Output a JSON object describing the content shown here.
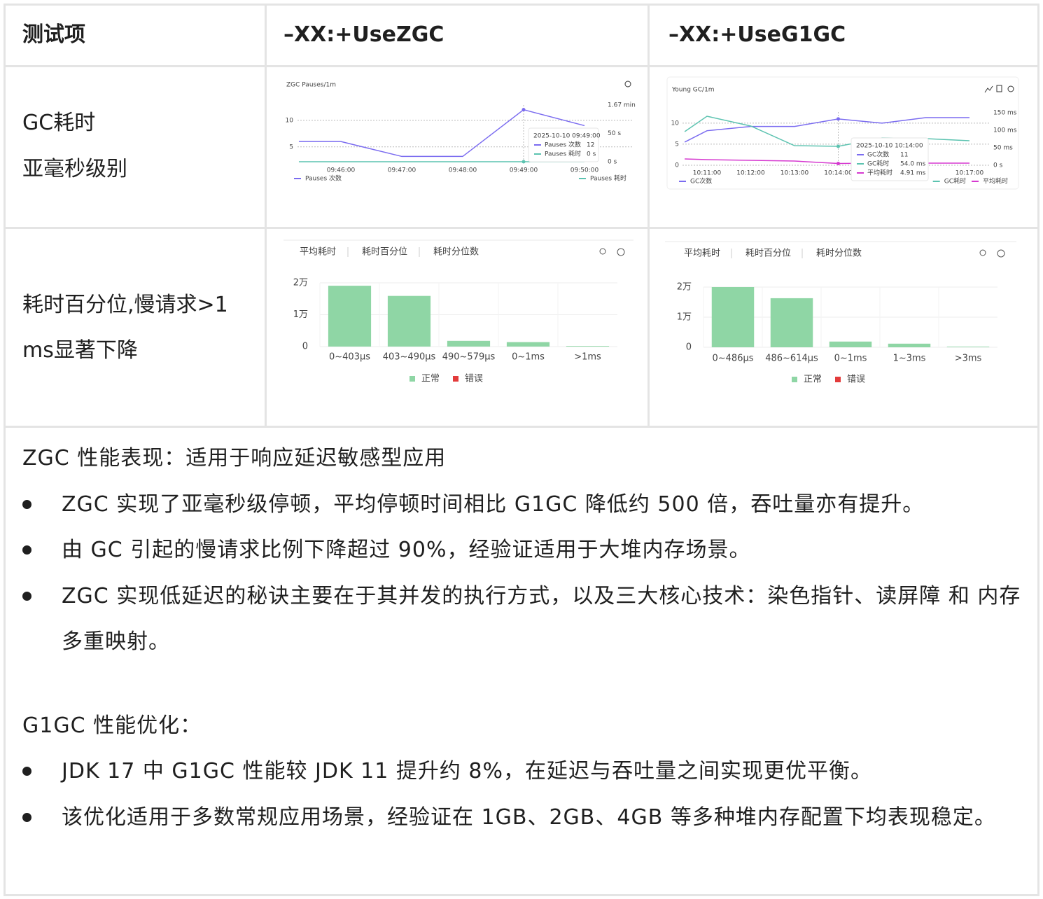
{
  "table": {
    "header": [
      "测试项",
      "–XX:+UseZGC",
      "–XX:+UseG1GC"
    ],
    "rows": [
      {
        "item": [
          "GC耗时",
          "亚毫秒级别"
        ],
        "zgc": {
          "type": "line",
          "title": "ZGC Pauses/1m",
          "categories": [
            null,
            "09:46:00",
            "09:47:00",
            "09:48:00",
            "09:49:00",
            "09:50:00"
          ],
          "ylim": [
            2.2,
            14.2
          ],
          "yticks": [
            5,
            10
          ],
          "y2lim": [
            0,
            112
          ],
          "y2ticks": [
            {
              "value": 0,
              "label": "0 s"
            },
            {
              "value": 50,
              "label": "50 s"
            },
            {
              "value": 100,
              "label": "1.67 min"
            }
          ],
          "series": [
            {
              "name": "Pauses 次数",
              "color": "#7b6cf0",
              "values": [
                6,
                6,
                3.2,
                3.2,
                12,
                9
              ]
            },
            {
              "name": "Pauses 耗时",
              "color": "#5cc3b0",
              "axis": "y2",
              "values": [
                0,
                0,
                0,
                0,
                0,
                0
              ]
            }
          ],
          "tooltip": {
            "title": "2025-10-10 09:49:00",
            "rows": [
              {
                "name": "Pauses 次数",
                "value": "12"
              },
              {
                "name": "Pauses 耗时",
                "value": "0 s"
              }
            ]
          }
        },
        "g1": {
          "type": "line",
          "title": "Young GC/1m",
          "categories": [
            null,
            "10:11:00",
            "10:12:00",
            "10:13:00",
            "10:14:00",
            null,
            null,
            "10:17:00"
          ],
          "ylim": [
            0,
            14.3
          ],
          "yticks": [
            0,
            5,
            10
          ],
          "y2lim": [
            0,
            172
          ],
          "y2ticks": [
            {
              "value": 0,
              "label": "0 s"
            },
            {
              "value": 50,
              "label": "50 ms"
            },
            {
              "value": 100,
              "label": "100 ms"
            },
            {
              "value": 150,
              "label": "150 ms"
            }
          ],
          "series": [
            {
              "name": "GC次数",
              "color": "#7b6cf0",
              "values": [
                5.5,
                8.2,
                9.2,
                9.2,
                11,
                10,
                11.3,
                11.3
              ]
            },
            {
              "name": "GC耗时",
              "color": "#5cc3b0",
              "axis": "y2",
              "values": [
                96,
                140,
                112,
                56,
                54,
                78,
                76,
                70
              ]
            },
            {
              "name": "平均耗时",
              "color": "#d63ad0",
              "axis": "y2",
              "values": [
                18,
                16,
                14,
                12,
                4.91,
                6,
                6,
                6
              ]
            }
          ],
          "tooltip": {
            "title": "2025-10-10 10:14:00",
            "rows": [
              {
                "name": "GC次数",
                "value": "11"
              },
              {
                "name": "GC耗时",
                "value": "54.0 ms"
              },
              {
                "name": "平均耗时",
                "value": "4.91 ms"
              }
            ]
          }
        }
      },
      {
        "item": [
          "耗时百分位,慢请求>1",
          "ms显著下降"
        ],
        "zgc": {
          "type": "bar",
          "tabs": [
            "平均耗时",
            "耗时百分位",
            "耗时分位数"
          ],
          "categories": [
            "0~403μs",
            "403~490μs",
            "490~579μs",
            "0~1ms",
            ">1ms"
          ],
          "ylim": [
            0,
            20000
          ],
          "yticks": [
            0,
            {
              "value": 10000,
              "label": "1万"
            },
            {
              "value": 20000,
              "label": "2万"
            }
          ],
          "series": [
            {
              "name": "正常",
              "color": "#8fd6a5",
              "values": [
                19100,
                15900,
                1800,
                1400,
                200
              ]
            },
            {
              "name": "错误",
              "color": "#e33b3b"
            }
          ]
        },
        "g1": {
          "type": "bar",
          "tabs": [
            "平均耗时",
            "耗时百分位",
            "耗时分位数"
          ],
          "categories": [
            "0~486μs",
            "486~614μs",
            "0~1ms",
            "1~3ms",
            ">3ms"
          ],
          "ylim": [
            0,
            20000
          ],
          "yticks": [
            0,
            {
              "value": 10000,
              "label": "1万"
            },
            {
              "value": 20000,
              "label": "2万"
            }
          ],
          "series": [
            {
              "name": "正常",
              "color": "#8fd6a5",
              "values": [
                20000,
                16300,
                1900,
                1200,
                200
              ]
            },
            {
              "name": "错误",
              "color": "#e33b3b"
            }
          ]
        }
      }
    ]
  },
  "summary": [
    {
      "heading": "ZGC 性能表现：适用于响应延迟敏感型应用",
      "bullets": [
        "ZGC 实现了亚毫秒级停顿，平均停顿时间相比 G1GC 降低约 500 倍，吞吐量亦有提升。",
        "由 GC 引起的慢请求比例下降超过 90%，经验证适用于大堆内存场景。",
        "ZGC 实现低延迟的秘诀主要在于其并发的执行方式，以及三大核心技术：染色指针、读屏障 和 内存多重映射。"
      ]
    },
    {
      "heading": "G1GC 性能优化：",
      "bullets": [
        "JDK 17 中 G1GC 性能较 JDK 11 提升约 8%，在延迟与吞吐量之间实现更优平衡。",
        "该优化适用于多数常规应用场景，经验证在 1GB、2GB、4GB 等多种堆内存配置下均表现稳定。"
      ]
    }
  ]
}
